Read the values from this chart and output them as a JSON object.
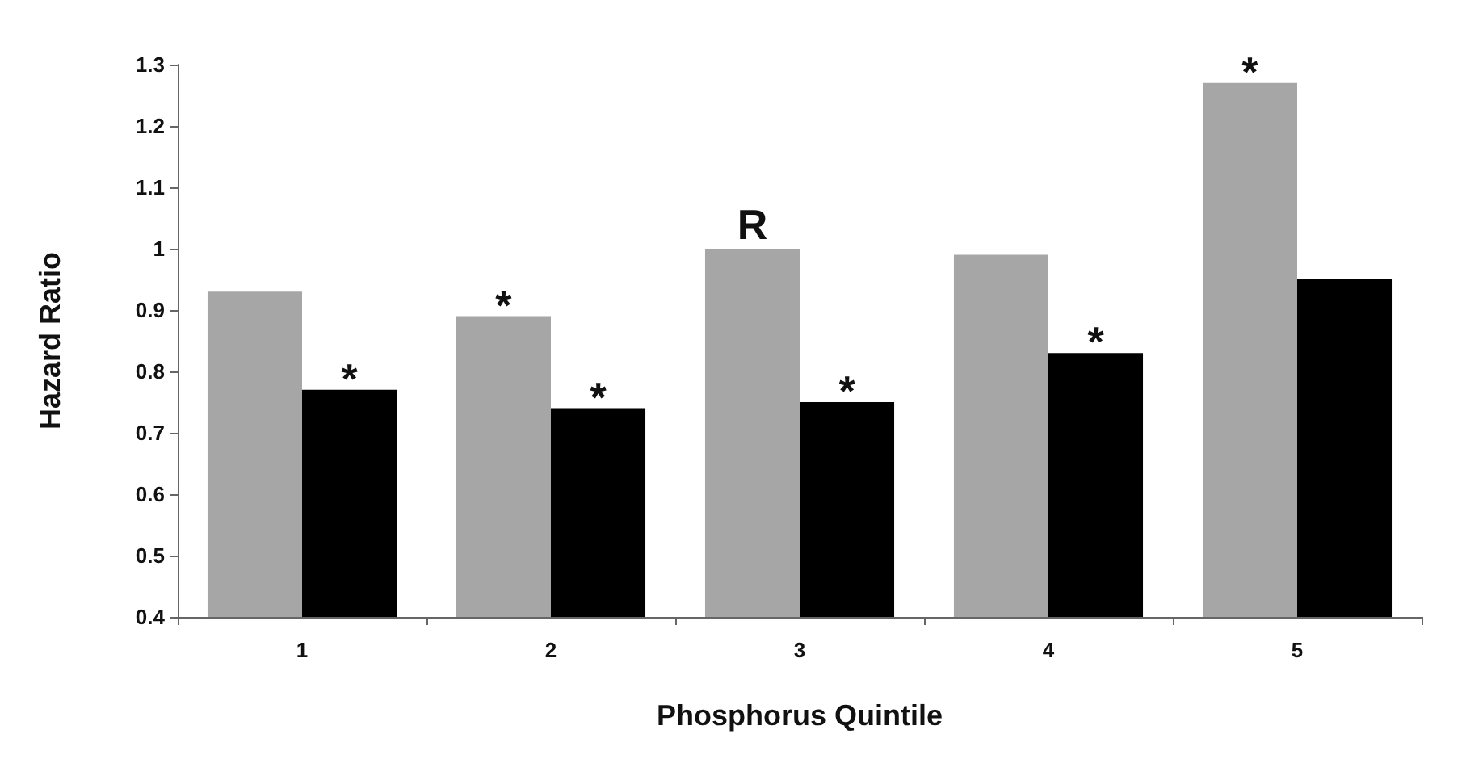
{
  "chart_data": {
    "type": "bar",
    "xlabel": "Phosphorus Quintile",
    "ylabel": "Hazard Ratio",
    "categories": [
      "1",
      "2",
      "3",
      "4",
      "5"
    ],
    "series": [
      {
        "color": "#a6a6a6",
        "values": [
          0.93,
          0.89,
          1.0,
          0.99,
          1.27
        ]
      },
      {
        "color": "#000000",
        "values": [
          0.77,
          0.74,
          0.75,
          0.83,
          0.95
        ]
      }
    ],
    "ylim": [
      0.4,
      1.3
    ],
    "yticks": [
      0.4,
      0.5,
      0.6,
      0.7,
      0.8,
      0.9,
      1,
      1.1,
      1.2,
      1.3
    ],
    "grid": false,
    "annotations": [
      {
        "text": "*",
        "x": "1",
        "y": 0.77
      },
      {
        "text": "*",
        "x": "2",
        "y": 0.89
      },
      {
        "text": "*",
        "x": "2",
        "y": 0.74
      },
      {
        "text": "R",
        "x": "3",
        "y": 1.0
      },
      {
        "text": "*",
        "x": "3",
        "y": 0.75
      },
      {
        "text": "*",
        "x": "4",
        "y": 0.83
      },
      {
        "text": "*",
        "x": "5",
        "y": 1.27
      }
    ]
  }
}
